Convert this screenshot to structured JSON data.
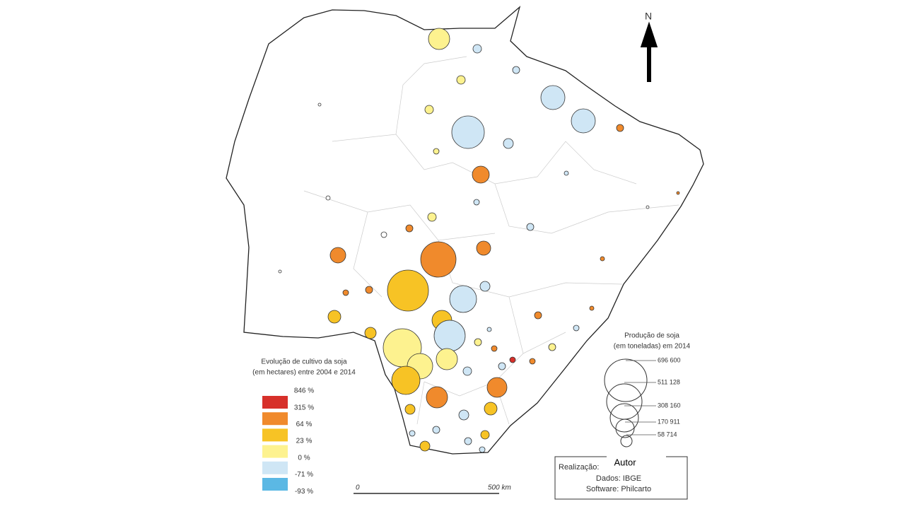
{
  "north": "N",
  "legend_evolution": {
    "title": [
      "Evolução de cultivo da soja",
      "(em hectares) entre 2004 e 2014"
    ],
    "labels": [
      "846 %",
      "315 %",
      "64 %",
      "23 %",
      "0 %",
      "-71 %",
      "-93 %"
    ],
    "colors": [
      "#d7302a",
      "#f08a2c",
      "#f7c325",
      "#fdf28f",
      "#cfe6f5",
      "#5bb8e4"
    ]
  },
  "legend_production": {
    "title": [
      "Produção de soja",
      "(em toneladas) em 2014"
    ],
    "labels": [
      "696 600",
      "511 128",
      "308 160",
      "170 911",
      "58 714"
    ]
  },
  "scale": {
    "start": "0",
    "end": "500 km"
  },
  "credits": {
    "realizacao": "Realização:",
    "author": "Autor",
    "dados": "Dados: IBGE",
    "software": "Software: Philcarto"
  }
}
